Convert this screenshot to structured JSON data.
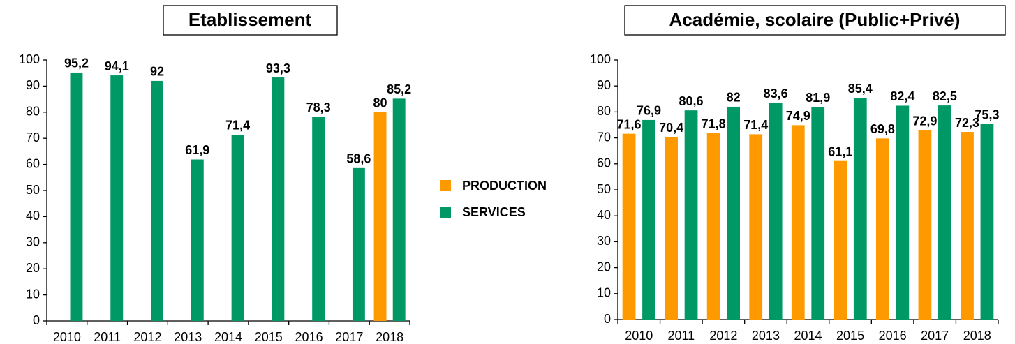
{
  "chart_data": [
    {
      "type": "bar",
      "title": "Etablissement",
      "categories": [
        "2010",
        "2011",
        "2012",
        "2013",
        "2014",
        "2015",
        "2016",
        "2017",
        "2018"
      ],
      "series": [
        {
          "name": "PRODUCTION",
          "color": "#ff9900",
          "values": [
            null,
            null,
            null,
            null,
            null,
            null,
            null,
            null,
            80
          ],
          "value_labels": [
            null,
            null,
            null,
            null,
            null,
            null,
            null,
            null,
            "80"
          ]
        },
        {
          "name": "SERVICES",
          "color": "#009966",
          "values": [
            95.2,
            94.1,
            92,
            61.9,
            71.4,
            93.3,
            78.3,
            58.6,
            85.2
          ],
          "value_labels": [
            "95,2",
            "94,1",
            "92",
            "61,9",
            "71,4",
            "93,3",
            "78,3",
            "58,6",
            "85,2"
          ]
        }
      ],
      "ylim": [
        0,
        100
      ],
      "yticks": [
        0,
        10,
        20,
        30,
        40,
        50,
        60,
        70,
        80,
        90,
        100
      ],
      "grid": false,
      "legend": "right"
    },
    {
      "type": "bar",
      "title": "Académie, scolaire (Public+Privé)",
      "categories": [
        "2010",
        "2011",
        "2012",
        "2013",
        "2014",
        "2015",
        "2016",
        "2017",
        "2018"
      ],
      "series": [
        {
          "color": "#ff9900",
          "values": [
            71.6,
            70.4,
            71.8,
            71.4,
            74.9,
            61.1,
            69.8,
            72.9,
            72.3
          ],
          "value_labels": [
            "71,6",
            "70,4",
            "71,8",
            "71,4",
            "74,9",
            "61,1",
            "69,8",
            "72,9",
            "72,3"
          ]
        },
        {
          "color": "#009966",
          "values": [
            76.9,
            80.6,
            82,
            83.6,
            81.9,
            85.4,
            82.4,
            82.5,
            75.3
          ],
          "value_labels": [
            "76,9",
            "80,6",
            "82",
            "83,6",
            "81,9",
            "85,4",
            "82,4",
            "82,5",
            "75,3"
          ]
        }
      ],
      "ylim": [
        0,
        100
      ],
      "yticks": [
        0,
        10,
        20,
        30,
        40,
        50,
        60,
        70,
        80,
        90,
        100
      ],
      "grid": false
    }
  ]
}
